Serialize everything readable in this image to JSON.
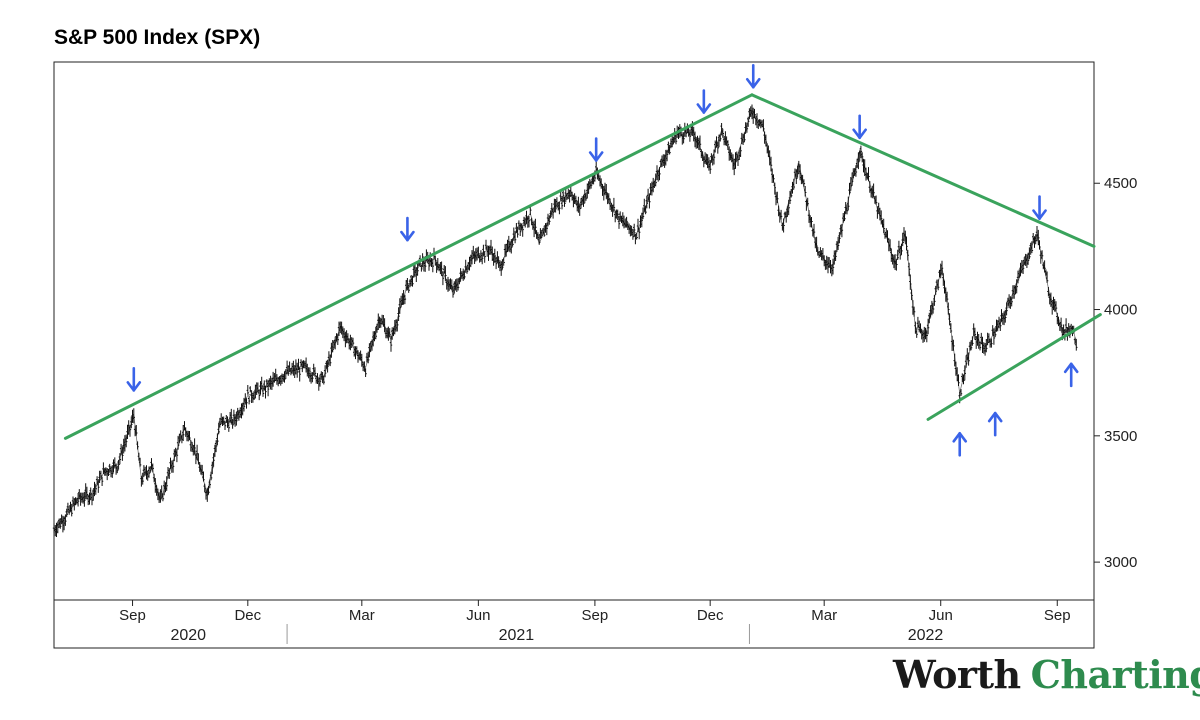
{
  "title": "S&P 500 Index (SPX)",
  "logo": {
    "word1": "Worth",
    "word2": "Charting"
  },
  "chart_data": {
    "type": "line",
    "title": "S&P 500 Index (SPX)",
    "y_axis_side": "right",
    "ylim": [
      2850,
      4980
    ],
    "xlim": [
      "2020-07-01",
      "2022-09-30"
    ],
    "y_ticks": [
      3000,
      3500,
      4000,
      4500
    ],
    "x_ticks": [
      {
        "label": "Sep",
        "date": "2020-09-01"
      },
      {
        "label": "Dec",
        "date": "2020-12-01"
      },
      {
        "label": "Mar",
        "date": "2021-03-01"
      },
      {
        "label": "Jun",
        "date": "2021-06-01"
      },
      {
        "label": "Sep",
        "date": "2021-09-01"
      },
      {
        "label": "Dec",
        "date": "2021-12-01"
      },
      {
        "label": "Mar",
        "date": "2022-03-01"
      },
      {
        "label": "Jun",
        "date": "2022-06-01"
      },
      {
        "label": "Sep",
        "date": "2022-09-01"
      }
    ],
    "years": [
      {
        "label": "2020",
        "center": "2020-10-15"
      },
      {
        "label": "2021",
        "center": "2021-07-01"
      },
      {
        "label": "2022",
        "center": "2022-05-20"
      }
    ],
    "year_separators": [
      "2021-01-01",
      "2022-01-01"
    ],
    "series": [
      {
        "color": "#111111",
        "points": [
          [
            "2020-07-01",
            3130
          ],
          [
            "2020-07-10",
            3180
          ],
          [
            "2020-07-20",
            3250
          ],
          [
            "2020-07-31",
            3270
          ],
          [
            "2020-08-10",
            3360
          ],
          [
            "2020-08-20",
            3385
          ],
          [
            "2020-08-28",
            3500
          ],
          [
            "2020-09-02",
            3580
          ],
          [
            "2020-09-08",
            3330
          ],
          [
            "2020-09-16",
            3380
          ],
          [
            "2020-09-23",
            3240
          ],
          [
            "2020-10-01",
            3370
          ],
          [
            "2020-10-12",
            3530
          ],
          [
            "2020-10-20",
            3450
          ],
          [
            "2020-10-30",
            3270
          ],
          [
            "2020-11-09",
            3550
          ],
          [
            "2020-11-20",
            3560
          ],
          [
            "2020-12-01",
            3660
          ],
          [
            "2020-12-15",
            3690
          ],
          [
            "2020-12-31",
            3750
          ],
          [
            "2021-01-15",
            3770
          ],
          [
            "2021-01-29",
            3720
          ],
          [
            "2021-02-12",
            3930
          ],
          [
            "2021-02-25",
            3830
          ],
          [
            "2021-03-04",
            3770
          ],
          [
            "2021-03-15",
            3970
          ],
          [
            "2021-03-24",
            3880
          ],
          [
            "2021-04-05",
            4080
          ],
          [
            "2021-04-16",
            4180
          ],
          [
            "2021-04-28",
            4200
          ],
          [
            "2021-05-12",
            4070
          ],
          [
            "2021-05-26",
            4200
          ],
          [
            "2021-06-10",
            4240
          ],
          [
            "2021-06-18",
            4170
          ],
          [
            "2021-06-30",
            4300
          ],
          [
            "2021-07-12",
            4380
          ],
          [
            "2021-07-19",
            4260
          ],
          [
            "2021-07-30",
            4400
          ],
          [
            "2021-08-13",
            4470
          ],
          [
            "2021-08-19",
            4400
          ],
          [
            "2021-09-02",
            4540
          ],
          [
            "2021-09-20",
            4360
          ],
          [
            "2021-10-04",
            4300
          ],
          [
            "2021-10-21",
            4550
          ],
          [
            "2021-11-05",
            4700
          ],
          [
            "2021-11-18",
            4700
          ],
          [
            "2021-11-30",
            4560
          ],
          [
            "2021-12-10",
            4710
          ],
          [
            "2021-12-20",
            4570
          ],
          [
            "2022-01-03",
            4790
          ],
          [
            "2022-01-12",
            4720
          ],
          [
            "2022-01-27",
            4330
          ],
          [
            "2022-02-09",
            4580
          ],
          [
            "2022-02-24",
            4220
          ],
          [
            "2022-03-08",
            4170
          ],
          [
            "2022-03-29",
            4630
          ],
          [
            "2022-04-12",
            4400
          ],
          [
            "2022-04-26",
            4180
          ],
          [
            "2022-05-04",
            4300
          ],
          [
            "2022-05-12",
            3930
          ],
          [
            "2022-05-20",
            3900
          ],
          [
            "2022-06-02",
            4170
          ],
          [
            "2022-06-16",
            3670
          ],
          [
            "2022-06-27",
            3900
          ],
          [
            "2022-07-06",
            3850
          ],
          [
            "2022-07-20",
            3960
          ],
          [
            "2022-08-01",
            4120
          ],
          [
            "2022-08-16",
            4300
          ],
          [
            "2022-08-26",
            4060
          ],
          [
            "2022-09-06",
            3910
          ],
          [
            "2022-09-13",
            3930
          ],
          [
            "2022-09-16",
            3870
          ]
        ]
      }
    ],
    "trend_lines": [
      {
        "color": "#3aa35c",
        "from": [
          "2020-07-10",
          3490
        ],
        "to": [
          "2022-01-03",
          4850
        ]
      },
      {
        "color": "#3aa35c",
        "from": [
          "2022-01-03",
          4850
        ],
        "to": [
          "2022-09-30",
          4250
        ]
      },
      {
        "color": "#3aa35c",
        "from": [
          "2022-05-22",
          3565
        ],
        "to": [
          "2022-10-05",
          3980
        ]
      }
    ],
    "annotations": {
      "arrow_color": "#3a63e8",
      "down_arrows": [
        [
          "2020-09-02",
          3680
        ],
        [
          "2021-04-06",
          4275
        ],
        [
          "2021-09-02",
          4590
        ],
        [
          "2021-11-26",
          4780
        ],
        [
          "2022-01-04",
          4880
        ],
        [
          "2022-03-29",
          4680
        ],
        [
          "2022-08-18",
          4360
        ]
      ],
      "up_arrows": [
        [
          "2022-06-16",
          3510
        ],
        [
          "2022-07-14",
          3590
        ],
        [
          "2022-09-12",
          3785
        ]
      ]
    }
  }
}
